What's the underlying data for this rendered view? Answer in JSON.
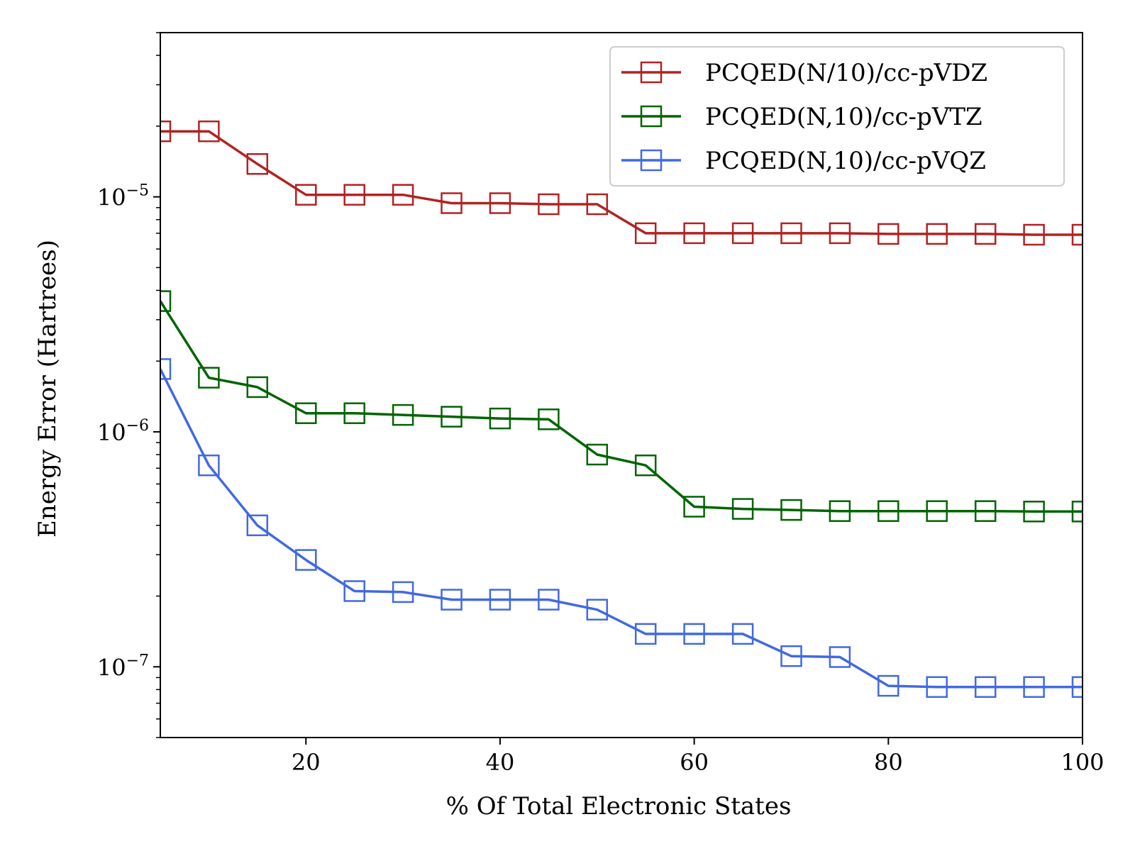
{
  "chart_data": {
    "type": "line",
    "xlabel": "% Of Total Electronic States",
    "ylabel": "Energy Error (Hartrees)",
    "xlim": [
      5,
      100
    ],
    "ylim": [
      5e-08,
      5e-05
    ],
    "yscale": "log",
    "x_ticks": [
      20,
      40,
      60,
      80,
      100
    ],
    "x_tick_labels": [
      "20",
      "40",
      "60",
      "80",
      "100"
    ],
    "y_ticks": [
      {
        "value": 1e-05,
        "mantissa": "10",
        "exponent": "−5"
      },
      {
        "value": 1e-06,
        "mantissa": "10",
        "exponent": "−6"
      },
      {
        "value": 1e-07,
        "mantissa": "10",
        "exponent": "−7"
      }
    ],
    "grid": false,
    "legend_position": "top-right",
    "marker": "open-square",
    "x": [
      5,
      10,
      15,
      20,
      25,
      30,
      35,
      40,
      45,
      50,
      55,
      60,
      65,
      70,
      75,
      80,
      85,
      90,
      95,
      100
    ],
    "series": [
      {
        "name": "PCQED(N/10)/cc-pVDZ",
        "color": "#b22222",
        "values": [
          1.9e-05,
          1.9e-05,
          1.38e-05,
          1.02e-05,
          1.02e-05,
          1.02e-05,
          9.4e-06,
          9.4e-06,
          9.3e-06,
          9.3e-06,
          7e-06,
          7e-06,
          7e-06,
          7e-06,
          7e-06,
          6.95e-06,
          6.95e-06,
          6.95e-06,
          6.9e-06,
          6.9e-06
        ]
      },
      {
        "name": "PCQED(N,10)/cc-pVTZ",
        "color": "#006400",
        "values": [
          3.6e-06,
          1.7e-06,
          1.55e-06,
          1.2e-06,
          1.2e-06,
          1.18e-06,
          1.16e-06,
          1.14e-06,
          1.13e-06,
          8e-07,
          7.2e-07,
          4.8e-07,
          4.7e-07,
          4.65e-07,
          4.6e-07,
          4.6e-07,
          4.6e-07,
          4.6e-07,
          4.58e-07,
          4.58e-07
        ]
      },
      {
        "name": "PCQED(N,10)/cc-pVQZ",
        "color": "#4169e1",
        "values": [
          1.85e-06,
          7.2e-07,
          4e-07,
          2.85e-07,
          2.1e-07,
          2.08e-07,
          1.93e-07,
          1.93e-07,
          1.93e-07,
          1.75e-07,
          1.38e-07,
          1.38e-07,
          1.38e-07,
          1.11e-07,
          1.1e-07,
          8.3e-08,
          8.2e-08,
          8.2e-08,
          8.2e-08,
          8.2e-08
        ]
      }
    ]
  }
}
